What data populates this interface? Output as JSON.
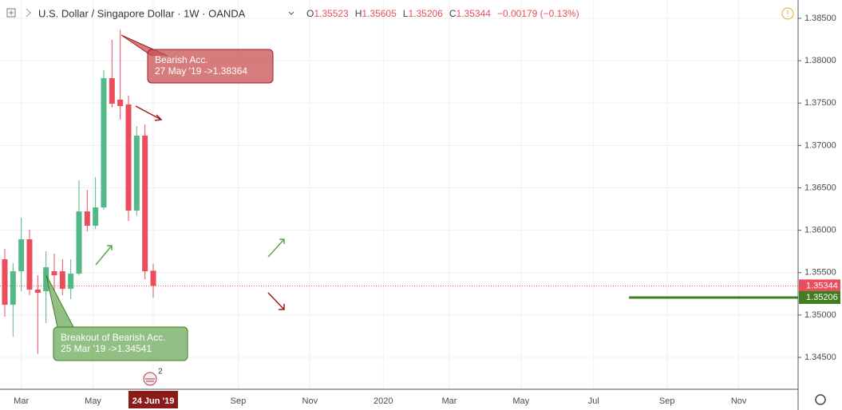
{
  "header": {
    "symbol": "U.S. Dollar / Singapore Dollar · 1W · OANDA",
    "ohlc": [
      {
        "key": "O",
        "text": "1.35523"
      },
      {
        "key": "H",
        "text": "1.35605"
      },
      {
        "key": "L",
        "text": "1.35206"
      },
      {
        "key": "C",
        "text": "1.35344"
      }
    ],
    "change": "−0.00179 (−0.13%)"
  },
  "chart_data": {
    "type": "candlestick",
    "up_color": "#53b987",
    "down_color": "#eb4d5c",
    "x": [
      0,
      1,
      2,
      3,
      4,
      5,
      6,
      7,
      8,
      9,
      10,
      11,
      12,
      13,
      14,
      15,
      16,
      17,
      18
    ],
    "open": [
      1.35658,
      1.35121,
      1.35516,
      1.35893,
      1.353,
      1.35281,
      1.35516,
      1.35516,
      1.35309,
      1.35488,
      1.36222,
      1.36053,
      1.36269,
      1.37794,
      1.3754,
      1.37484,
      1.36232,
      1.37116,
      1.35523
    ],
    "high": [
      1.3578,
      1.35611,
      1.36147,
      1.36006,
      1.35469,
      1.35752,
      1.35725,
      1.35657,
      1.35657,
      1.36589,
      1.36476,
      1.36627,
      1.37888,
      1.38246,
      1.38364,
      1.37587,
      1.37229,
      1.37248,
      1.35605
    ],
    "low": [
      1.3498,
      1.34744,
      1.35281,
      1.35234,
      1.34541,
      1.34905,
      1.35281,
      1.35234,
      1.35187,
      1.35469,
      1.35987,
      1.36015,
      1.36241,
      1.37446,
      1.37305,
      1.36109,
      1.36175,
      1.35422,
      1.35206
    ],
    "close": [
      1.35121,
      1.35516,
      1.35893,
      1.353,
      1.35262,
      1.35563,
      1.35469,
      1.35309,
      1.35488,
      1.36222,
      1.36053,
      1.36269,
      1.37794,
      1.37493,
      1.37465,
      1.36232,
      1.37116,
      1.35516,
      1.35344
    ],
    "xlim": [
      -0.58,
      96.2
    ],
    "xticks": [
      {
        "value": 2,
        "label": "Mar"
      },
      {
        "value": 10.7,
        "label": "May"
      },
      {
        "value": 18,
        "label": "24 Jun '19"
      },
      {
        "value": 28.3,
        "label": "Sep"
      },
      {
        "value": 37,
        "label": "Nov"
      },
      {
        "value": 45.9,
        "label": "2020"
      },
      {
        "value": 53.9,
        "label": "Mar"
      },
      {
        "value": 62.6,
        "label": "May"
      },
      {
        "value": 71.4,
        "label": "Jul"
      },
      {
        "value": 80.3,
        "label": "Sep"
      },
      {
        "value": 89,
        "label": "Nov"
      }
    ],
    "ylim": [
      1.34124,
      1.38716
    ],
    "yticks": [
      {
        "value": 1.345,
        "label": "1.34500"
      },
      {
        "value": 1.35,
        "label": "1.35000"
      },
      {
        "value": 1.355,
        "label": "1.35500"
      },
      {
        "value": 1.36,
        "label": "1.36000"
      },
      {
        "value": 1.365,
        "label": "1.36500"
      },
      {
        "value": 1.37,
        "label": "1.37000"
      },
      {
        "value": 1.375,
        "label": "1.37500"
      },
      {
        "value": 1.38,
        "label": "1.38000"
      },
      {
        "value": 1.385,
        "label": "1.38500"
      }
    ],
    "grid": true,
    "price_labels": [
      {
        "value": 1.35344,
        "color": "#eb4d5c"
      },
      {
        "value": 1.35206,
        "color": "#3f7f1f"
      }
    ],
    "support_line": {
      "value": 1.35206,
      "x_start": 75.7,
      "color": "#3f7f1f"
    },
    "annotations": [
      {
        "lines": [
          "Bearish Acc.",
          "27 May '19 ->1.38364"
        ],
        "color": "red"
      },
      {
        "lines": [
          "Breakout of Bearish Acc.",
          "25 Mar '19 ->1.34541"
        ],
        "color": "green"
      }
    ],
    "event_badge": "2"
  }
}
